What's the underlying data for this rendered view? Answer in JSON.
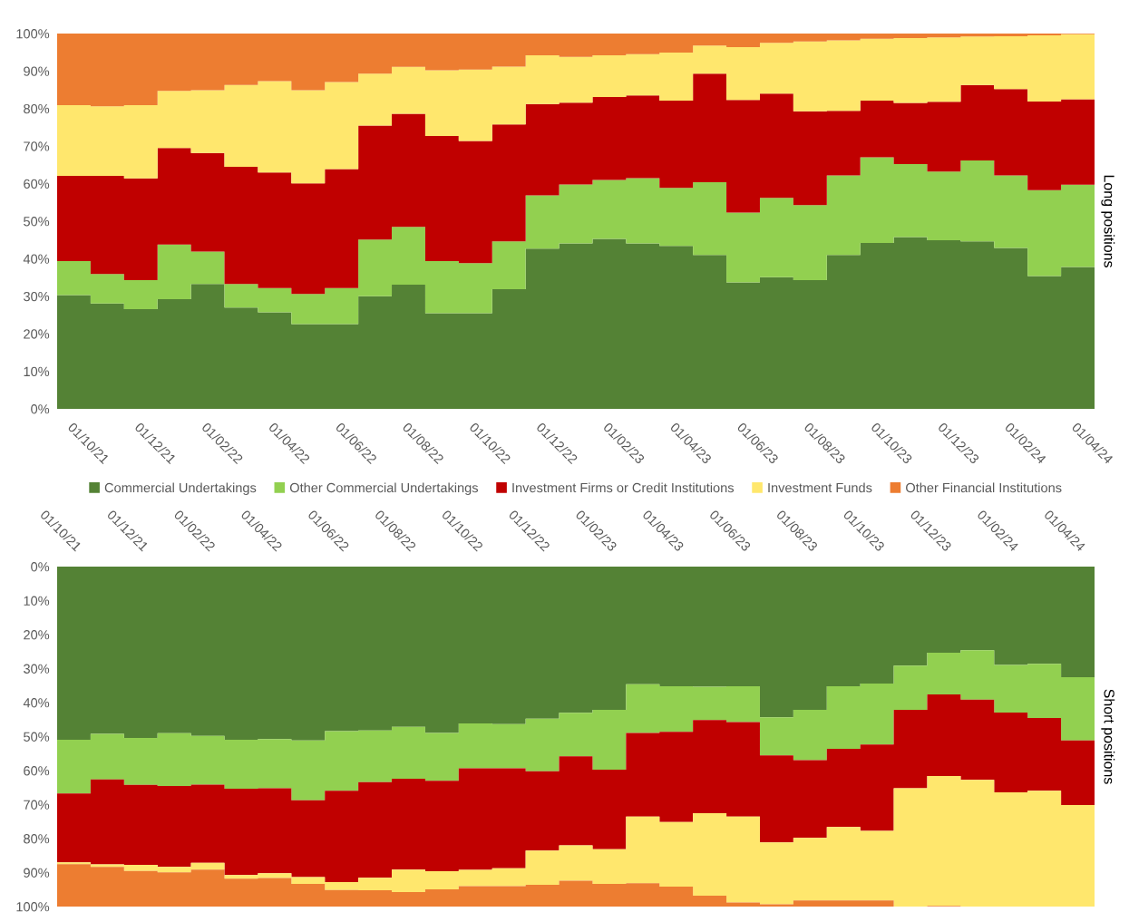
{
  "chart_data": [
    {
      "type": "area",
      "stacked": true,
      "ylabel": "Long positions",
      "legend": "bottom",
      "grid": false,
      "categories": [
        "01/10/21",
        null,
        "01/12/21",
        null,
        "01/02/22",
        null,
        "01/04/22",
        null,
        "01/06/22",
        null,
        "01/08/22",
        null,
        "01/10/22",
        null,
        "01/12/22",
        null,
        "01/02/23",
        null,
        "01/04/23",
        null,
        "01/06/23",
        null,
        "01/08/23",
        null,
        "01/10/23",
        null,
        "01/12/23",
        null,
        "01/02/24",
        null,
        "01/04/24"
      ],
      "ylim": [
        0,
        100
      ],
      "yticks": [
        {
          "value": 0,
          "label": "0%"
        },
        {
          "value": 10,
          "label": "10%"
        },
        {
          "value": 20,
          "label": "20%"
        },
        {
          "value": 30,
          "label": "30%"
        },
        {
          "value": 40,
          "label": "40%"
        },
        {
          "value": 50,
          "label": "50%"
        },
        {
          "value": 60,
          "label": "60%"
        },
        {
          "value": 70,
          "label": "70%"
        },
        {
          "value": 80,
          "label": "80%"
        },
        {
          "value": 90,
          "label": "90%"
        },
        {
          "value": 100,
          "label": "100%"
        }
      ],
      "series": [
        {
          "name": "Commercial Undertakings",
          "color": "#548235",
          "values": [
            30.3,
            28.1,
            26.6,
            29.2,
            33.3,
            27.0,
            25.7,
            22.6,
            22.6,
            30.0,
            33.1,
            25.5,
            25.5,
            31.9,
            42.7,
            44.1,
            45.3,
            44.1,
            43.4,
            41.0,
            33.7,
            35.1,
            34.3,
            41.0,
            44.2,
            45.8,
            44.9,
            44.6,
            42.9,
            35.4,
            37.8
          ]
        },
        {
          "name": "Other Commercial Undertakings",
          "color": "#92d050",
          "values": [
            9.1,
            7.8,
            7.7,
            14.6,
            8.6,
            6.3,
            6.5,
            8.0,
            9.6,
            15.1,
            15.4,
            13.9,
            13.3,
            12.7,
            14.2,
            15.7,
            15.7,
            17.4,
            15.5,
            19.4,
            18.6,
            21.1,
            20.0,
            21.2,
            22.8,
            19.4,
            18.3,
            21.6,
            19.3,
            22.9,
            21.9
          ]
        },
        {
          "name": "Investment Firms or Credit Institutions",
          "color": "#c00000",
          "values": [
            22.7,
            26.2,
            27.1,
            25.7,
            26.3,
            31.2,
            30.8,
            29.5,
            31.7,
            30.4,
            30.1,
            33.3,
            32.6,
            31.2,
            24.3,
            21.8,
            22.1,
            22.0,
            23.2,
            28.9,
            30.0,
            27.8,
            25.0,
            17.2,
            15.1,
            16.3,
            18.6,
            20.1,
            23.0,
            23.6,
            22.8
          ]
        },
        {
          "name": "Investment Funds",
          "color": "#ffe76d",
          "values": [
            18.8,
            18.5,
            19.5,
            15.2,
            16.7,
            21.8,
            24.3,
            24.8,
            23.2,
            13.8,
            12.5,
            17.5,
            19.0,
            15.4,
            13.0,
            12.2,
            11.1,
            11.0,
            12.8,
            7.5,
            14.1,
            13.5,
            18.6,
            18.8,
            16.5,
            17.3,
            17.2,
            12.9,
            14.1,
            17.6,
            17.3
          ]
        },
        {
          "name": "Other Financial Institutions",
          "color": "#ed7d31",
          "values": [
            19.1,
            19.4,
            19.1,
            15.3,
            15.1,
            13.7,
            12.7,
            15.1,
            12.9,
            10.7,
            8.9,
            9.8,
            9.6,
            8.8,
            5.8,
            6.2,
            5.8,
            5.5,
            5.1,
            3.2,
            3.6,
            2.5,
            2.1,
            1.8,
            1.4,
            1.2,
            1.0,
            0.8,
            0.7,
            0.5,
            0.2
          ]
        }
      ]
    },
    {
      "type": "area",
      "stacked": true,
      "ylabel": "Short positions",
      "grid": false,
      "categories": [
        "01/10/21",
        null,
        "01/12/21",
        null,
        "01/02/22",
        null,
        "01/04/22",
        null,
        "01/06/22",
        null,
        "01/08/22",
        null,
        "01/10/22",
        null,
        "01/12/22",
        null,
        "01/02/23",
        null,
        "01/04/23",
        null,
        "01/06/23",
        null,
        "01/08/23",
        null,
        "01/10/23",
        null,
        "01/12/23",
        null,
        "01/02/24",
        null,
        "01/04/24"
      ],
      "ylim": [
        100,
        0
      ],
      "yticks": [
        {
          "value": 0,
          "label": "0%"
        },
        {
          "value": 10,
          "label": "10%"
        },
        {
          "value": 20,
          "label": "20%"
        },
        {
          "value": 30,
          "label": "30%"
        },
        {
          "value": 40,
          "label": "40%"
        },
        {
          "value": 50,
          "label": "50%"
        },
        {
          "value": 60,
          "label": "60%"
        },
        {
          "value": 70,
          "label": "70%"
        },
        {
          "value": 80,
          "label": "80%"
        },
        {
          "value": 90,
          "label": "90%"
        },
        {
          "value": 100,
          "label": "100%"
        }
      ],
      "series": [
        {
          "color": "#548235",
          "values": [
            50.9,
            49.2,
            50.4,
            49.0,
            49.8,
            50.9,
            50.7,
            51.1,
            48.4,
            48.2,
            47.1,
            48.9,
            46.1,
            46.3,
            44.7,
            43.0,
            42.1,
            34.6,
            35.2,
            35.3,
            35.2,
            44.3,
            42.1,
            35.2,
            34.4,
            29.1,
            25.3,
            24.6,
            28.9,
            28.6,
            32.5
          ]
        },
        {
          "color": "#92d050",
          "values": [
            15.8,
            13.4,
            13.8,
            15.5,
            14.3,
            14.4,
            14.5,
            17.6,
            17.5,
            15.2,
            15.3,
            14.1,
            13.2,
            13.0,
            15.5,
            12.8,
            17.6,
            14.3,
            13.4,
            9.8,
            10.5,
            11.2,
            14.8,
            18.4,
            17.9,
            13.0,
            12.3,
            14.5,
            14.0,
            15.9,
            18.6
          ]
        },
        {
          "color": "#c00000",
          "values": [
            20.3,
            25.0,
            23.5,
            23.8,
            23.0,
            25.4,
            25.0,
            22.6,
            26.9,
            28.1,
            26.7,
            26.6,
            29.9,
            29.4,
            23.3,
            26.2,
            23.4,
            24.6,
            26.5,
            27.4,
            27.8,
            25.6,
            22.9,
            23.0,
            25.4,
            23.1,
            24.0,
            23.6,
            23.5,
            21.4,
            19.0
          ]
        },
        {
          "color": "#ffe76d",
          "values": [
            0.5,
            0.7,
            1.8,
            1.6,
            2.0,
            1.1,
            1.4,
            2.0,
            2.3,
            3.7,
            6.6,
            5.3,
            4.8,
            5.3,
            10.1,
            10.4,
            10.2,
            19.6,
            19.0,
            24.3,
            25.3,
            18.2,
            18.4,
            21.6,
            20.5,
            34.8,
            38.2,
            37.3,
            33.6,
            34.1,
            29.9
          ]
        },
        {
          "color": "#ed7d31",
          "values": [
            12.5,
            11.7,
            10.5,
            10.1,
            10.9,
            8.2,
            8.4,
            6.7,
            4.9,
            4.8,
            4.3,
            5.1,
            6.0,
            6.0,
            6.4,
            7.6,
            6.7,
            6.9,
            5.9,
            3.2,
            1.2,
            0.7,
            1.8,
            1.8,
            1.8,
            0.0,
            0.2,
            0.0,
            0.0,
            0.0,
            0.0
          ]
        }
      ]
    }
  ]
}
